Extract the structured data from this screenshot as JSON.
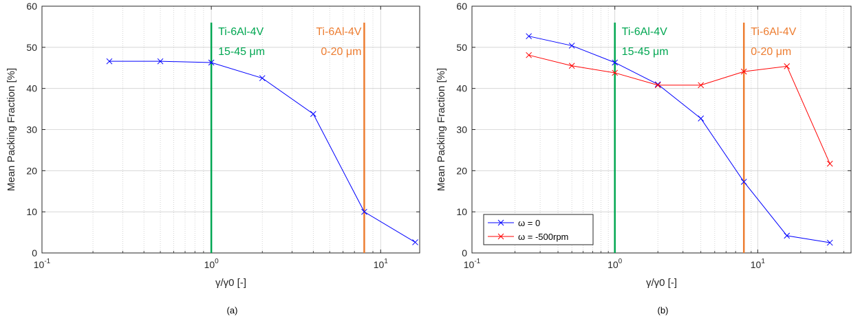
{
  "chart_data": [
    {
      "type": "line",
      "caption": "(a)",
      "xlabel": "γ/γ0 [-]",
      "ylabel": "Mean Packing Fraction [%]",
      "xscale": "log",
      "xlim": [
        0.1,
        17
      ],
      "ylim": [
        0,
        60
      ],
      "yticks": [
        "0",
        "10",
        "20",
        "30",
        "40",
        "50",
        "60"
      ],
      "xticks": [
        {
          "value": 0.1,
          "base": "10",
          "exp": "-1"
        },
        {
          "value": 1,
          "base": "10",
          "exp": "0"
        },
        {
          "value": 10,
          "base": "10",
          "exp": "1"
        }
      ],
      "grid": true,
      "series": [
        {
          "color": "#0000ff",
          "marker": "x",
          "x": [
            0.25,
            0.5,
            1,
            2,
            4,
            8,
            16
          ],
          "y": [
            46.6,
            46.6,
            46.3,
            42.5,
            33.8,
            10.0,
            2.6
          ]
        }
      ],
      "vlines": [
        {
          "x": 1,
          "color": "#00a651",
          "label1": "Ti-6Al-4V",
          "label2": "15-45 μm",
          "label_side": "right"
        },
        {
          "x": 8,
          "color": "#ed7d31",
          "label1": "Ti-6Al-4V",
          "label2": "0-20 μm",
          "label_side": "left"
        }
      ]
    },
    {
      "type": "line",
      "caption": "(b)",
      "xlabel": "γ/γ0 [-]",
      "ylabel": "Mean Packing Fraction [%]",
      "xscale": "log",
      "xlim": [
        0.1,
        45
      ],
      "ylim": [
        0,
        60
      ],
      "yticks": [
        "0",
        "10",
        "20",
        "30",
        "40",
        "50",
        "60"
      ],
      "xticks": [
        {
          "value": 0.1,
          "base": "10",
          "exp": "-1"
        },
        {
          "value": 1,
          "base": "10",
          "exp": "0"
        },
        {
          "value": 10,
          "base": "10",
          "exp": "1"
        }
      ],
      "grid": true,
      "legend_position": "bottom-left",
      "series": [
        {
          "name": "ω = 0",
          "color": "#0000ff",
          "marker": "x",
          "x": [
            0.25,
            0.5,
            1,
            2,
            4,
            8,
            16,
            32
          ],
          "y": [
            52.7,
            50.4,
            46.3,
            41.0,
            32.7,
            17.3,
            4.2,
            2.5
          ]
        },
        {
          "name": "ω = -500rpm",
          "color": "#ff0000",
          "marker": "x",
          "x": [
            0.25,
            0.5,
            1,
            2,
            4,
            8,
            16,
            32
          ],
          "y": [
            48.1,
            45.5,
            43.8,
            40.8,
            40.8,
            44.1,
            45.4,
            21.7
          ]
        }
      ],
      "vlines": [
        {
          "x": 1,
          "color": "#00a651",
          "label1": "Ti-6Al-4V",
          "label2": "15-45 μm",
          "label_side": "right"
        },
        {
          "x": 8,
          "color": "#ed7d31",
          "label1": "Ti-6Al-4V",
          "label2": "0-20 μm",
          "label_side": "right"
        }
      ]
    }
  ]
}
